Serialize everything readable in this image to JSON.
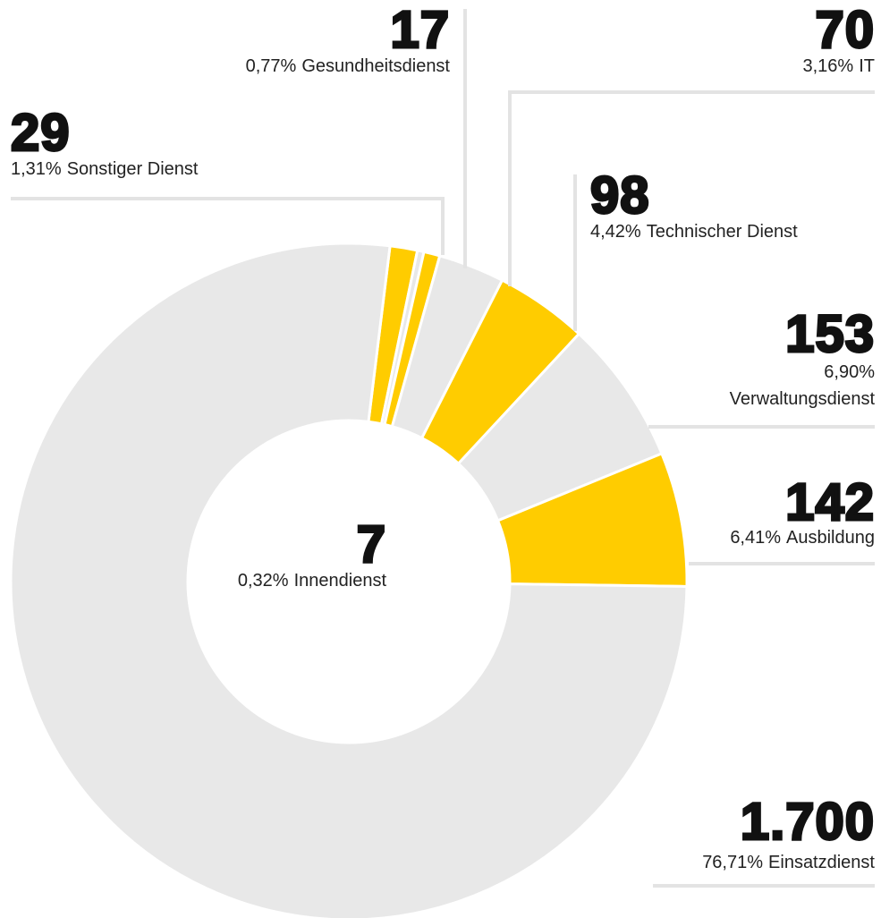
{
  "chart_data": {
    "type": "donut",
    "categories": [
      "Sonstiger Dienst",
      "Innendienst",
      "Gesundheitsdienst",
      "IT",
      "Technischer Dienst",
      "Verwaltungsdienst",
      "Ausbildung",
      "Einsatzdienst"
    ],
    "values": [
      29,
      7,
      17,
      70,
      98,
      153,
      142,
      1700
    ],
    "value_labels": [
      "29",
      "7",
      "17",
      "70",
      "98",
      "153",
      "142",
      "1.700"
    ],
    "percentages": [
      1.31,
      0.32,
      0.77,
      3.16,
      4.42,
      6.9,
      6.41,
      76.71
    ],
    "percentage_labels": [
      "1,31%",
      "0,32%",
      "0,77%",
      "3,16%",
      "4,42%",
      "6,90%",
      "6,41%",
      "76,71%"
    ],
    "colors": [
      "#ffcc00",
      "#e8e8e8",
      "#ffcc00",
      "#e8e8e8",
      "#ffcc00",
      "#e8e8e8",
      "#ffcc00",
      "#e8e8e8"
    ]
  }
}
